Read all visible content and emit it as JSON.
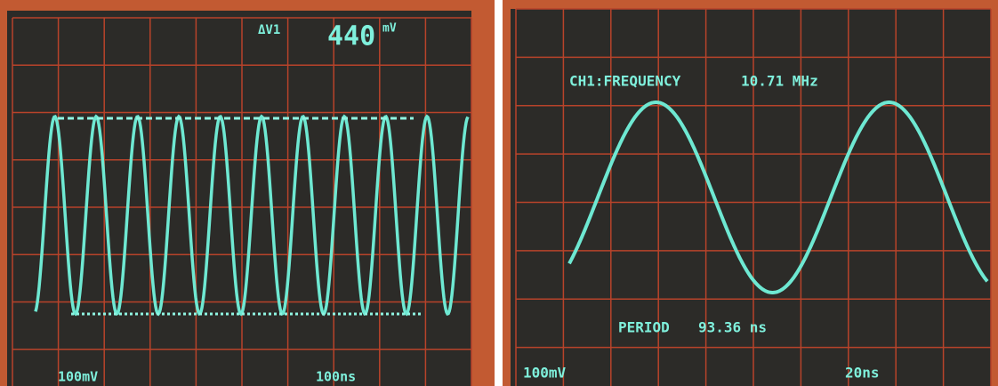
{
  "left_screen": {
    "delta_label": "ΔV1",
    "delta_value": "440",
    "delta_unit": "mV",
    "volts_div": "100mV",
    "time_div": "100ns"
  },
  "right_screen": {
    "measurement": "CH1:FREQUENCY",
    "frequency": "10.71 MHz",
    "period_label": "PERIOD",
    "period": "93.36 ns",
    "volts_div": "100mV",
    "time_div": "20ns"
  }
}
